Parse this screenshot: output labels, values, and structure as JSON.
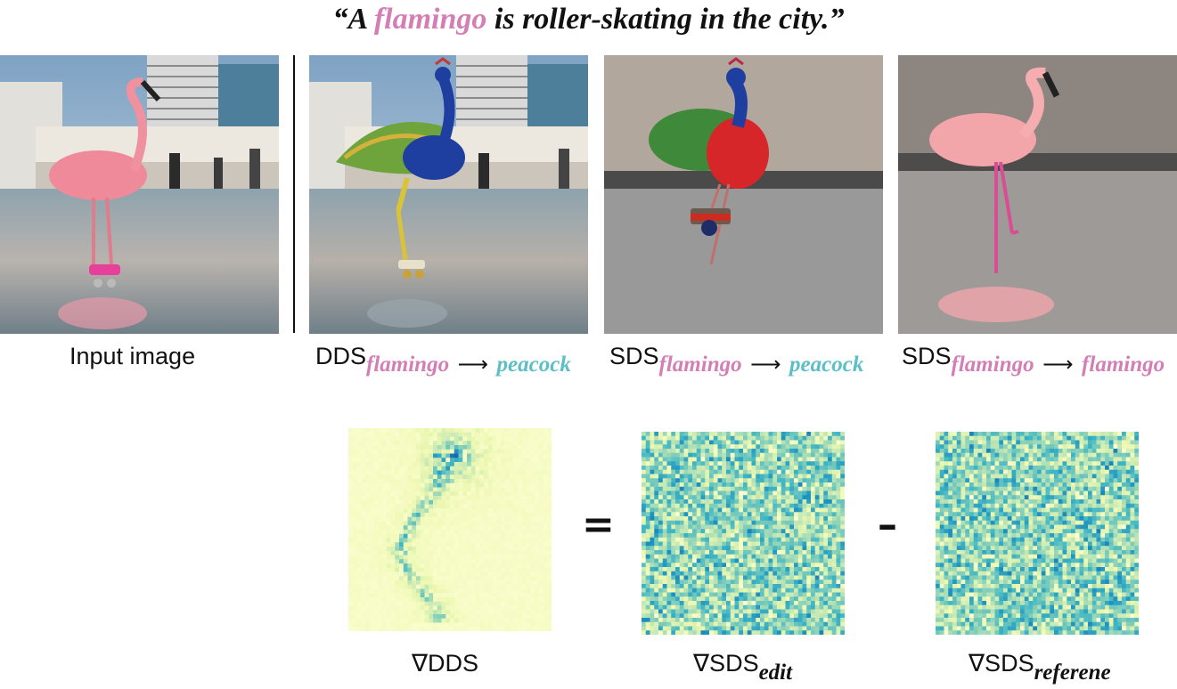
{
  "colors": {
    "flamingo": "#d47fb4",
    "peacock": "#5cbfc6"
  },
  "title": {
    "open": "“A ",
    "highlight": "flamingo",
    "rest": " is roller-skating in the city.”"
  },
  "panels": [
    {
      "caption": "Input image"
    },
    {
      "caption_main": "DDS",
      "src": "flamingo",
      "arrow": "⟶",
      "dst": "peacock"
    },
    {
      "caption_main": "SDS",
      "src": "flamingo",
      "arrow": "⟶",
      "dst": "peacock"
    },
    {
      "caption_main": "SDS",
      "src": "flamingo",
      "arrow": "⟶",
      "dst": "flamingo"
    }
  ],
  "gradients": {
    "dds": {
      "main": "∇DDS"
    },
    "edit": {
      "main": "∇SDS",
      "sub": "edit"
    },
    "ref": {
      "main": "∇SDS",
      "sub": "referene"
    },
    "equals": "=",
    "minus": "–"
  }
}
